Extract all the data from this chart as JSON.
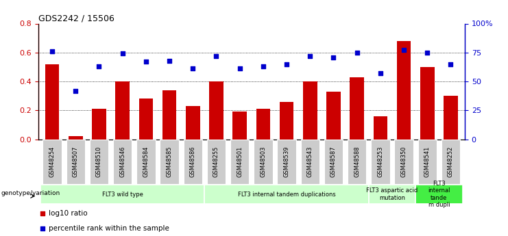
{
  "title": "GDS2242 / 15506",
  "samples": [
    "GSM48254",
    "GSM48507",
    "GSM48510",
    "GSM48546",
    "GSM48584",
    "GSM48585",
    "GSM48586",
    "GSM48255",
    "GSM48501",
    "GSM48503",
    "GSM48539",
    "GSM48543",
    "GSM48587",
    "GSM48588",
    "GSM48253",
    "GSM48350",
    "GSM48541",
    "GSM48252"
  ],
  "log10_ratio": [
    0.52,
    0.02,
    0.21,
    0.4,
    0.28,
    0.34,
    0.23,
    0.4,
    0.19,
    0.21,
    0.26,
    0.4,
    0.33,
    0.43,
    0.16,
    0.68,
    0.5,
    0.3
  ],
  "percentile_rank": [
    0.76,
    0.42,
    0.63,
    0.74,
    0.67,
    0.68,
    0.61,
    0.72,
    0.61,
    0.63,
    0.65,
    0.72,
    0.71,
    0.75,
    0.57,
    0.77,
    0.75,
    0.65
  ],
  "bar_color": "#cc0000",
  "dot_color": "#0000cc",
  "ylim_left": [
    0,
    0.8
  ],
  "ylim_right": [
    0,
    1.0
  ],
  "yticks_left": [
    0,
    0.2,
    0.4,
    0.6,
    0.8
  ],
  "ytick_labels_right": [
    "0",
    "25",
    "50",
    "75",
    "100%"
  ],
  "groups": [
    {
      "label": "FLT3 wild type",
      "start": 0,
      "end": 7,
      "color": "#ccffcc"
    },
    {
      "label": "FLT3 internal tandem duplications",
      "start": 7,
      "end": 14,
      "color": "#ccffcc"
    },
    {
      "label": "FLT3 aspartic acid\nmutation",
      "start": 14,
      "end": 16,
      "color": "#ccffcc"
    },
    {
      "label": "FLT3\ninternal\ntande\nm dupli",
      "start": 16,
      "end": 18,
      "color": "#44ee44"
    }
  ],
  "tick_bg_color": "#cccccc",
  "genotype_label": "genotype/variation",
  "legend_items": [
    {
      "label": "log10 ratio",
      "color": "#cc0000"
    },
    {
      "label": "percentile rank within the sample",
      "color": "#0000cc"
    }
  ]
}
